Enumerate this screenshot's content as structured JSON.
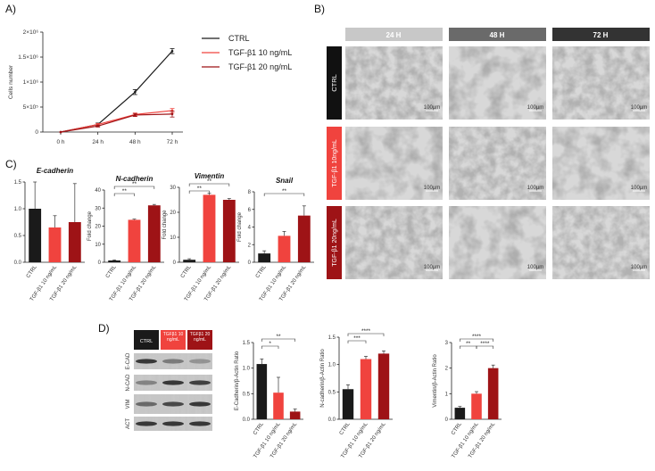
{
  "figure": {
    "panel_labels": {
      "A": "A)",
      "B": "B)",
      "C": "C)",
      "D": "D)"
    },
    "colors": {
      "ctrl": "#1a1a1a",
      "tgf10": "#f0433e",
      "tgf20": "#9e1316"
    }
  },
  "panelB": {
    "columns": [
      "24 H",
      "48 H",
      "72 H"
    ],
    "rows": [
      "CTRL",
      "TGF-β1 10ng/mL",
      "TGF-β1 20ng/mL"
    ],
    "scale_label": "100µm"
  },
  "panelD_blot": {
    "headers": [
      "CTRL",
      "TGFβ1 10 ng/mL",
      "TGFβ1 20 ng/mL"
    ],
    "rows": [
      "E-CAD",
      "N-CAD",
      "VIM",
      "ACT"
    ]
  },
  "chart_data": [
    {
      "id": "A",
      "type": "line",
      "xlabel": "",
      "ylabel": "Cells number",
      "categories": [
        "0 h",
        "24 h",
        "48 h",
        "72 h"
      ],
      "yticks": [
        "0",
        "5×10⁵",
        "1×10⁶",
        "1.5×10⁶",
        "2×10⁶"
      ],
      "ylim": [
        0,
        2000000
      ],
      "legend_position": "right",
      "series": [
        {
          "name": "CTRL",
          "values": [
            0,
            150000,
            800000,
            1620000
          ],
          "err": [
            0,
            30000,
            50000,
            50000
          ]
        },
        {
          "name": "TGF-β1 10 ng/mL",
          "values": [
            0,
            150000,
            350000,
            430000
          ],
          "err": [
            0,
            20000,
            30000,
            40000
          ]
        },
        {
          "name": "TGF-β1 20 ng/mL",
          "values": [
            0,
            120000,
            340000,
            360000
          ],
          "err": [
            0,
            20000,
            30000,
            60000
          ]
        }
      ]
    },
    {
      "id": "C1",
      "type": "bar",
      "title": "E-cadherin",
      "ylabel": "",
      "categories": [
        "CTRL",
        "TGF-β1 10 ng/mL",
        "TGF-β1 20 ng/mL"
      ],
      "values": [
        1.0,
        0.65,
        0.75
      ],
      "err": [
        0.5,
        0.22,
        0.72
      ],
      "ylim": [
        0,
        1.5
      ],
      "yticks": [
        "0.0",
        "0.5",
        "1.0",
        "1.5"
      ]
    },
    {
      "id": "C2",
      "type": "bar",
      "title": "N-cadherin",
      "ylabel": "Fold change",
      "categories": [
        "CTRL",
        "TGF-β1 10 ng/mL",
        "TGF-β1 20 ng/mL"
      ],
      "values": [
        1,
        23.5,
        31.5
      ],
      "err": [
        0.3,
        0.4,
        0.5
      ],
      "ylim": [
        0,
        40
      ],
      "yticks": [
        "0",
        "10",
        "20",
        "30",
        "40"
      ],
      "sig": [
        {
          "from": 0,
          "to": 1,
          "label": "**"
        },
        {
          "from": 0,
          "to": 2,
          "label": "**"
        }
      ]
    },
    {
      "id": "C3",
      "type": "bar",
      "title": "Vimentin",
      "ylabel": "Fold change",
      "categories": [
        "CTRL",
        "TGF-β1 10 ng/mL",
        "TGF-β1 20 ng/mL"
      ],
      "values": [
        1,
        27,
        25
      ],
      "err": [
        0.4,
        0.6,
        0.5
      ],
      "ylim": [
        0,
        30
      ],
      "yticks": [
        "0",
        "10",
        "20",
        "30"
      ],
      "sig": [
        {
          "from": 0,
          "to": 1,
          "label": "**"
        },
        {
          "from": 0,
          "to": 2,
          "label": "**"
        }
      ]
    },
    {
      "id": "C4",
      "type": "bar",
      "title": "Snail",
      "ylabel": "Fold change",
      "categories": [
        "CTRL",
        "TGF-β1 10 ng/mL",
        "TGF-β1 20 ng/mL"
      ],
      "values": [
        1,
        3,
        5.3
      ],
      "err": [
        0.3,
        0.5,
        1.1
      ],
      "ylim": [
        0,
        8
      ],
      "yticks": [
        "0",
        "2",
        "4",
        "6",
        "8"
      ],
      "sig": [
        {
          "from": 0,
          "to": 2,
          "label": "**"
        }
      ]
    },
    {
      "id": "D1",
      "type": "bar",
      "ylabel": "E-Cadherin/β-Actin Ratio",
      "categories": [
        "CTRL",
        "TGF-β1 10 ng/mL",
        "TGF-β1 20 ng/mL"
      ],
      "values": [
        1.08,
        0.52,
        0.15
      ],
      "err": [
        0.1,
        0.3,
        0.05
      ],
      "ylim": [
        0,
        1.5
      ],
      "yticks": [
        "0.0",
        "0.5",
        "1.0",
        "1.5"
      ],
      "sig": [
        {
          "from": 0,
          "to": 1,
          "label": "*"
        },
        {
          "from": 0,
          "to": 2,
          "label": "**"
        }
      ]
    },
    {
      "id": "D2",
      "type": "bar",
      "ylabel": "N-cadherin/β-Actin Ratio",
      "categories": [
        "CTRL",
        "TGF-β1 10 ng/mL",
        "TGF-β1 20 ng/mL"
      ],
      "values": [
        0.55,
        1.1,
        1.2
      ],
      "err": [
        0.08,
        0.05,
        0.05
      ],
      "ylim": [
        0,
        1.5
      ],
      "yticks": [
        "0.0",
        "0.5",
        "1.0",
        "1.5"
      ],
      "sig": [
        {
          "from": 0,
          "to": 1,
          "label": "***"
        },
        {
          "from": 0,
          "to": 2,
          "label": "****"
        }
      ]
    },
    {
      "id": "D3",
      "type": "bar",
      "ylabel": "Vimentin/β-Actin Ratio",
      "categories": [
        "CTRL",
        "TGF-β1 10 ng/mL",
        "TGF-β1 20 ng/mL"
      ],
      "values": [
        0.45,
        1.0,
        2.0
      ],
      "err": [
        0.05,
        0.08,
        0.12
      ],
      "ylim": [
        0,
        3
      ],
      "yticks": [
        "0",
        "1",
        "2",
        "3"
      ],
      "sig": [
        {
          "from": 0,
          "to": 1,
          "label": "**"
        },
        {
          "from": 1,
          "to": 2,
          "label": "****"
        },
        {
          "from": 0,
          "to": 2,
          "label": "****"
        }
      ]
    }
  ]
}
